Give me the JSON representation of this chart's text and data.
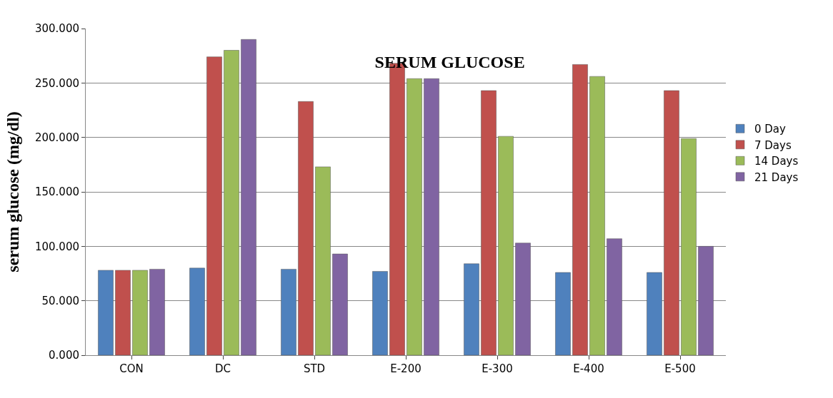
{
  "chart_data": {
    "type": "bar",
    "title": "SERUM GLUCOSE",
    "ylabel": "serum glucose (mg/dl)",
    "categories": [
      "CON",
      "DC",
      "STD",
      "E-200",
      "E-300",
      "E-400",
      "E-500"
    ],
    "series": [
      {
        "name": "0 Day",
        "color": "#4f81bd",
        "values": [
          78,
          80,
          79,
          77,
          84,
          76,
          76
        ]
      },
      {
        "name": "7 Days",
        "color": "#c0504d",
        "values": [
          78,
          274,
          233,
          268,
          243,
          267,
          243
        ]
      },
      {
        "name": "14 Days",
        "color": "#9bbb59",
        "values": [
          78,
          280,
          173,
          254,
          201,
          256,
          199
        ]
      },
      {
        "name": "21 Days",
        "color": "#8064a2",
        "values": [
          79,
          290,
          93,
          254,
          103,
          107,
          100
        ]
      }
    ],
    "ylim": [
      0,
      300
    ],
    "yticks": [
      {
        "value": 0,
        "label": "0.000"
      },
      {
        "value": 50,
        "label": "50.000"
      },
      {
        "value": 100,
        "label": "100.000"
      },
      {
        "value": 150,
        "label": "150.000"
      },
      {
        "value": 200,
        "label": "200.000"
      },
      {
        "value": 250,
        "label": "250.000"
      },
      {
        "value": 300,
        "label": "300.000"
      }
    ],
    "grid": "y",
    "legend": "right"
  }
}
